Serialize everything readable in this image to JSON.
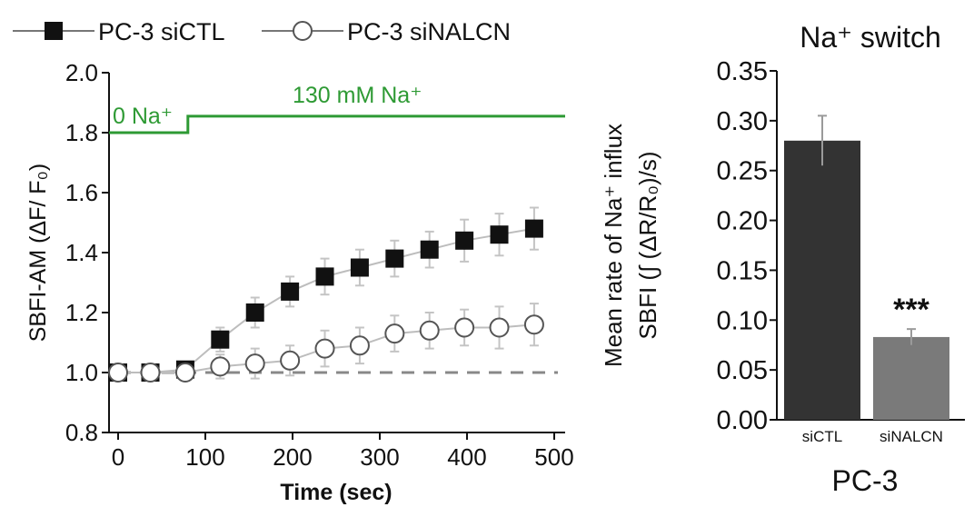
{
  "chart_data": [
    {
      "type": "line",
      "xlabel": "Time (sec)",
      "ylabel": "SBFI-AM (ΔF/ F₀)",
      "xlim": [
        0,
        500
      ],
      "ylim": [
        0.8,
        2.0
      ],
      "xticks": [
        0,
        100,
        200,
        300,
        400,
        500
      ],
      "yticks": [
        0.8,
        1.0,
        1.2,
        1.4,
        1.6,
        1.8,
        2.0
      ],
      "legend_position": "top",
      "series": [
        {
          "name": "PC-3 siCTL",
          "marker": "filled-square",
          "color": "#111111",
          "x": [
            0,
            37,
            77,
            117,
            157,
            197,
            237,
            277,
            317,
            357,
            397,
            437,
            477
          ],
          "y": [
            1.0,
            1.0,
            1.01,
            1.11,
            1.2,
            1.27,
            1.32,
            1.35,
            1.38,
            1.41,
            1.44,
            1.46,
            1.48
          ],
          "err": [
            0.01,
            0.01,
            0.02,
            0.04,
            0.05,
            0.05,
            0.06,
            0.06,
            0.06,
            0.06,
            0.07,
            0.07,
            0.07
          ]
        },
        {
          "name": "PC-3 siNALCN",
          "marker": "open-circle",
          "color": "#555555",
          "x": [
            0,
            37,
            77,
            117,
            157,
            197,
            237,
            277,
            317,
            357,
            397,
            437,
            477
          ],
          "y": [
            1.0,
            1.0,
            1.0,
            1.02,
            1.03,
            1.04,
            1.08,
            1.09,
            1.13,
            1.14,
            1.15,
            1.15,
            1.16
          ],
          "err": [
            0.01,
            0.01,
            0.02,
            0.04,
            0.05,
            0.05,
            0.06,
            0.06,
            0.06,
            0.06,
            0.06,
            0.07,
            0.07
          ]
        }
      ],
      "baseline": {
        "y": 1.0,
        "style": "dashed",
        "color": "#888888"
      },
      "protocol": {
        "color": "#2e9a34",
        "low_label": "0 Na⁺",
        "high_label": "130 mM Na⁺",
        "switch_x": 80,
        "low_y": 1.8,
        "high_y": 1.855
      }
    },
    {
      "type": "bar",
      "title": "Na⁺ switch",
      "xlabel": "PC-3",
      "ylabel_line1": "Mean rate of Na⁺ influx",
      "ylabel_line2": "SBFI (∫ (ΔR/R₀)/s)",
      "ylim": [
        0,
        0.35
      ],
      "yticks": [
        0.0,
        0.05,
        0.1,
        0.15,
        0.2,
        0.25,
        0.3,
        0.35
      ],
      "categories": [
        "siCTL",
        "siNALCN"
      ],
      "values": [
        0.28,
        0.083
      ],
      "errors": [
        0.025,
        0.008
      ],
      "colors": [
        "#333333",
        "#7a7a7a"
      ],
      "annotation": "***"
    }
  ]
}
